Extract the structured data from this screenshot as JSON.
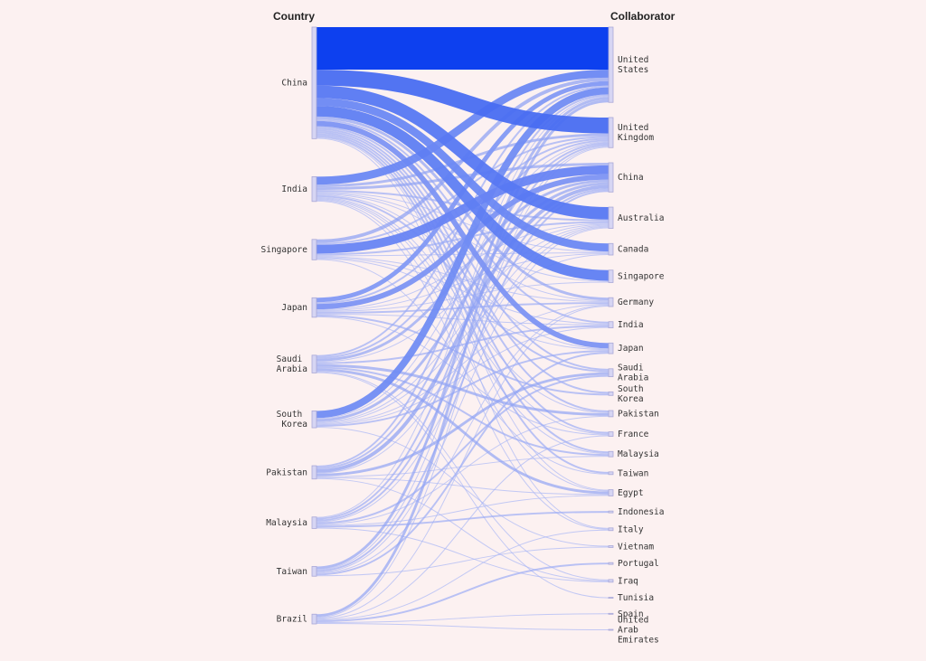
{
  "chart_data": {
    "type": "sankey",
    "source_title": "Country",
    "target_title": "Collaborator",
    "color_scale": [
      "#cdd1f7",
      "#0036ee"
    ],
    "sources": [
      "China",
      "India",
      "Singapore",
      "Japan",
      "Saudi Arabia",
      "South Korea",
      "Pakistan",
      "Malaysia",
      "Taiwan",
      "Brazil"
    ],
    "targets": [
      "United States",
      "United Kingdom",
      "China",
      "Australia",
      "Canada",
      "Singapore",
      "Germany",
      "India",
      "Japan",
      "Saudi Arabia",
      "South Korea",
      "Pakistan",
      "France",
      "Malaysia",
      "Taiwan",
      "Egypt",
      "Indonesia",
      "Italy",
      "Vietnam",
      "Portugal",
      "Iraq",
      "Tunisia",
      "Spain",
      "United Arab Emirates"
    ],
    "links": [
      {
        "source": "China",
        "target": "United States",
        "value": 48
      },
      {
        "source": "China",
        "target": "United Kingdom",
        "value": 18
      },
      {
        "source": "China",
        "target": "Australia",
        "value": 14
      },
      {
        "source": "China",
        "target": "Canada",
        "value": 9
      },
      {
        "source": "China",
        "target": "Singapore",
        "value": 12
      },
      {
        "source": "China",
        "target": "Germany",
        "value": 3
      },
      {
        "source": "China",
        "target": "India",
        "value": 2
      },
      {
        "source": "China",
        "target": "Japan",
        "value": 6
      },
      {
        "source": "China",
        "target": "Saudi Arabia",
        "value": 2
      },
      {
        "source": "China",
        "target": "South Korea",
        "value": 2
      },
      {
        "source": "China",
        "target": "Pakistan",
        "value": 2
      },
      {
        "source": "China",
        "target": "France",
        "value": 2
      },
      {
        "source": "China",
        "target": "Malaysia",
        "value": 2
      },
      {
        "source": "China",
        "target": "Taiwan",
        "value": 2
      },
      {
        "source": "China",
        "target": "Egypt",
        "value": 1
      },
      {
        "source": "China",
        "target": "Italy",
        "value": 1
      },
      {
        "source": "India",
        "target": "United States",
        "value": 9
      },
      {
        "source": "India",
        "target": "United Kingdom",
        "value": 3
      },
      {
        "source": "India",
        "target": "China",
        "value": 3
      },
      {
        "source": "India",
        "target": "Australia",
        "value": 2
      },
      {
        "source": "India",
        "target": "Canada",
        "value": 1
      },
      {
        "source": "India",
        "target": "Singapore",
        "value": 1
      },
      {
        "source": "India",
        "target": "Germany",
        "value": 1
      },
      {
        "source": "India",
        "target": "Japan",
        "value": 1
      },
      {
        "source": "India",
        "target": "Saudi Arabia",
        "value": 2
      },
      {
        "source": "India",
        "target": "Pakistan",
        "value": 1
      },
      {
        "source": "India",
        "target": "France",
        "value": 1
      },
      {
        "source": "India",
        "target": "Malaysia",
        "value": 1
      },
      {
        "source": "India",
        "target": "Egypt",
        "value": 1
      },
      {
        "source": "India",
        "target": "Italy",
        "value": 1
      },
      {
        "source": "Singapore",
        "target": "United States",
        "value": 4
      },
      {
        "source": "Singapore",
        "target": "United Kingdom",
        "value": 2
      },
      {
        "source": "Singapore",
        "target": "China",
        "value": 10
      },
      {
        "source": "Singapore",
        "target": "Australia",
        "value": 2
      },
      {
        "source": "Singapore",
        "target": "Canada",
        "value": 1
      },
      {
        "source": "Singapore",
        "target": "Germany",
        "value": 1
      },
      {
        "source": "Singapore",
        "target": "India",
        "value": 1
      },
      {
        "source": "Singapore",
        "target": "Japan",
        "value": 1
      },
      {
        "source": "Singapore",
        "target": "Taiwan",
        "value": 1
      },
      {
        "source": "Japan",
        "target": "United States",
        "value": 5
      },
      {
        "source": "Japan",
        "target": "United Kingdom",
        "value": 2
      },
      {
        "source": "Japan",
        "target": "China",
        "value": 6
      },
      {
        "source": "Japan",
        "target": "Australia",
        "value": 1
      },
      {
        "source": "Japan",
        "target": "Canada",
        "value": 1
      },
      {
        "source": "Japan",
        "target": "Singapore",
        "value": 1
      },
      {
        "source": "Japan",
        "target": "Germany",
        "value": 2
      },
      {
        "source": "Japan",
        "target": "India",
        "value": 1
      },
      {
        "source": "Japan",
        "target": "South Korea",
        "value": 2
      },
      {
        "source": "Japan",
        "target": "France",
        "value": 1
      },
      {
        "source": "Saudi Arabia",
        "target": "United States",
        "value": 2
      },
      {
        "source": "Saudi Arabia",
        "target": "United Kingdom",
        "value": 2
      },
      {
        "source": "Saudi Arabia",
        "target": "China",
        "value": 3
      },
      {
        "source": "Saudi Arabia",
        "target": "Australia",
        "value": 1
      },
      {
        "source": "Saudi Arabia",
        "target": "India",
        "value": 2
      },
      {
        "source": "Saudi Arabia",
        "target": "Pakistan",
        "value": 3
      },
      {
        "source": "Saudi Arabia",
        "target": "Malaysia",
        "value": 2
      },
      {
        "source": "Saudi Arabia",
        "target": "Egypt",
        "value": 3
      },
      {
        "source": "Saudi Arabia",
        "target": "Iraq",
        "value": 1
      },
      {
        "source": "Saudi Arabia",
        "target": "Tunisia",
        "value": 1
      },
      {
        "source": "South Korea",
        "target": "United States",
        "value": 8
      },
      {
        "source": "South Korea",
        "target": "United Kingdom",
        "value": 1
      },
      {
        "source": "South Korea",
        "target": "China",
        "value": 3
      },
      {
        "source": "South Korea",
        "target": "Australia",
        "value": 1
      },
      {
        "source": "South Korea",
        "target": "Canada",
        "value": 1
      },
      {
        "source": "South Korea",
        "target": "Germany",
        "value": 1
      },
      {
        "source": "South Korea",
        "target": "India",
        "value": 1
      },
      {
        "source": "South Korea",
        "target": "Japan",
        "value": 2
      },
      {
        "source": "South Korea",
        "target": "Vietnam",
        "value": 1
      },
      {
        "source": "Pakistan",
        "target": "United States",
        "value": 2
      },
      {
        "source": "Pakistan",
        "target": "United Kingdom",
        "value": 2
      },
      {
        "source": "Pakistan",
        "target": "China",
        "value": 4
      },
      {
        "source": "Pakistan",
        "target": "Australia",
        "value": 1
      },
      {
        "source": "Pakistan",
        "target": "Saudi Arabia",
        "value": 3
      },
      {
        "source": "Pakistan",
        "target": "Malaysia",
        "value": 1
      },
      {
        "source": "Pakistan",
        "target": "Egypt",
        "value": 1
      },
      {
        "source": "Pakistan",
        "target": "Iraq",
        "value": 1
      },
      {
        "source": "Malaysia",
        "target": "United States",
        "value": 1
      },
      {
        "source": "Malaysia",
        "target": "United Kingdom",
        "value": 2
      },
      {
        "source": "Malaysia",
        "target": "China",
        "value": 2
      },
      {
        "source": "Malaysia",
        "target": "Australia",
        "value": 1
      },
      {
        "source": "Malaysia",
        "target": "Saudi Arabia",
        "value": 2
      },
      {
        "source": "Malaysia",
        "target": "Pakistan",
        "value": 1
      },
      {
        "source": "Malaysia",
        "target": "Egypt",
        "value": 1
      },
      {
        "source": "Malaysia",
        "target": "Indonesia",
        "value": 2
      },
      {
        "source": "Malaysia",
        "target": "Iraq",
        "value": 1
      },
      {
        "source": "Taiwan",
        "target": "United States",
        "value": 3
      },
      {
        "source": "Taiwan",
        "target": "United Kingdom",
        "value": 1
      },
      {
        "source": "Taiwan",
        "target": "China",
        "value": 2
      },
      {
        "source": "Taiwan",
        "target": "Australia",
        "value": 1
      },
      {
        "source": "Taiwan",
        "target": "Germany",
        "value": 1
      },
      {
        "source": "Taiwan",
        "target": "Japan",
        "value": 2
      },
      {
        "source": "Taiwan",
        "target": "Vietnam",
        "value": 1
      },
      {
        "source": "Brazil",
        "target": "United States",
        "value": 3
      },
      {
        "source": "Brazil",
        "target": "United Kingdom",
        "value": 1
      },
      {
        "source": "Brazil",
        "target": "Germany",
        "value": 1
      },
      {
        "source": "Brazil",
        "target": "France",
        "value": 1
      },
      {
        "source": "Brazil",
        "target": "Italy",
        "value": 1
      },
      {
        "source": "Brazil",
        "target": "Portugal",
        "value": 2
      },
      {
        "source": "Brazil",
        "target": "Spain",
        "value": 1
      },
      {
        "source": "Brazil",
        "target": "United Arab Emirates",
        "value": 1
      }
    ]
  }
}
